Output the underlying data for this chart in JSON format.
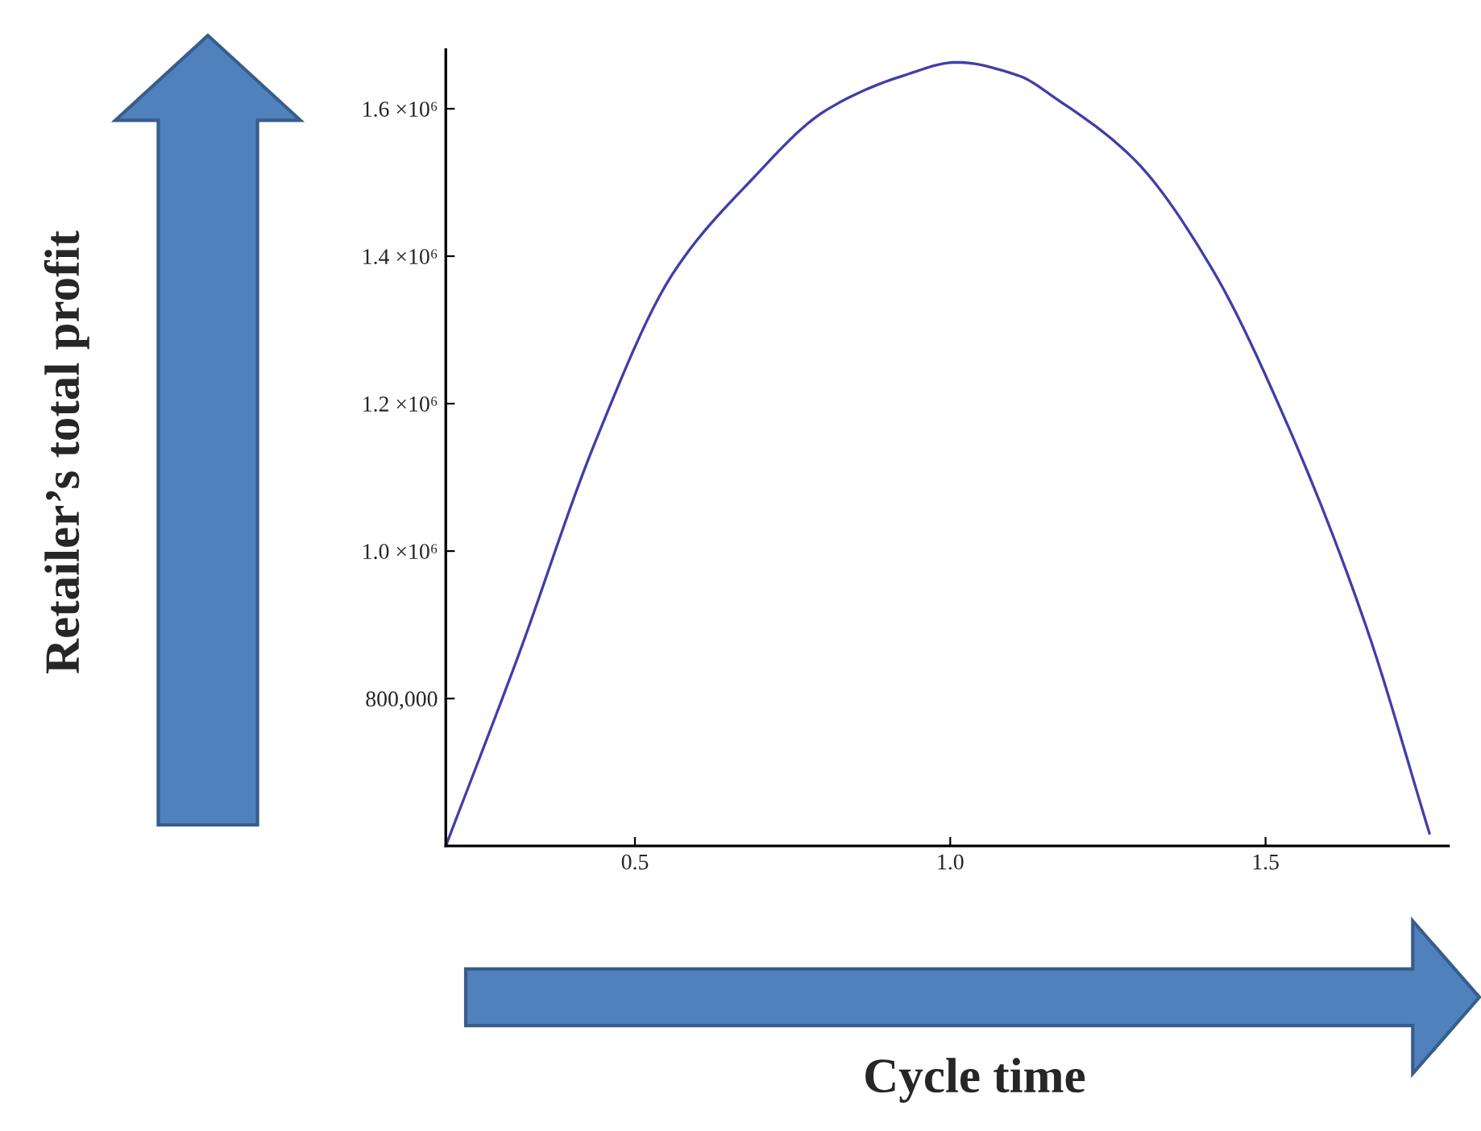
{
  "chart_data": {
    "type": "line",
    "xlabel": "Cycle time",
    "annotations": [
      "Retailer’s total profit"
    ],
    "x": [
      0.2,
      0.315,
      0.437,
      0.559,
      0.681,
      0.803,
      0.926,
      1.01,
      1.108,
      1.169,
      1.292,
      1.413,
      1.536,
      1.659,
      1.76
    ],
    "series": [
      {
        "color": "#3f3fa8",
        "values": [
          600000,
          858000,
          1148000,
          1375000,
          1500000,
          1598000,
          1645000,
          1663000,
          1645000,
          1613000,
          1531000,
          1386000,
          1169000,
          899000,
          617000
        ]
      }
    ],
    "xlim": [
      0.2,
      1.79
    ],
    "ylim": [
      600000,
      1680000
    ],
    "xticks": [
      0.5,
      {
        "value": 1.0,
        "label": "1.0"
      },
      1.5
    ],
    "yticks": [
      {
        "value": 800000,
        "label": "800,000"
      },
      {
        "value": 1000000,
        "label": "1.0 ×10⁶"
      },
      {
        "value": 1200000,
        "label": "1.2 ×10⁶"
      },
      {
        "value": 1400000,
        "label": "1.4 ×10⁶"
      },
      {
        "value": 1600000,
        "label": "1.6 ×10⁶"
      }
    ],
    "grid": false,
    "legend": false,
    "marker": "none",
    "line_style": "solid"
  }
}
